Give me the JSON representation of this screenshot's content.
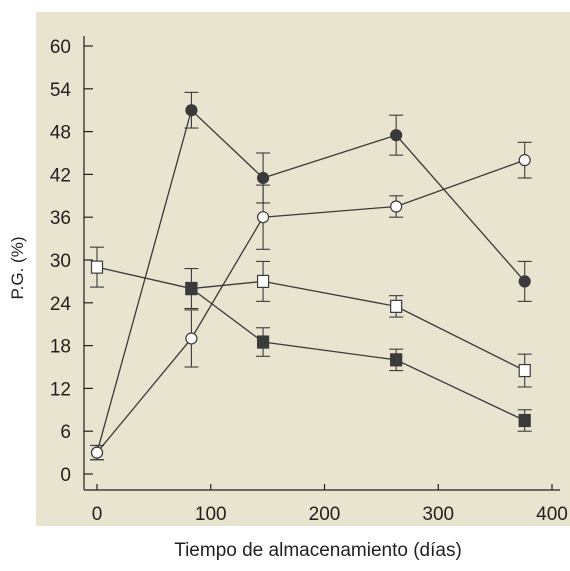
{
  "chart_data": {
    "type": "line",
    "title": "",
    "xlabel": "Tiempo de almacenamiento (días)",
    "ylabel": "P.G. (%)",
    "xlim": [
      0,
      400
    ],
    "ylim": [
      0,
      60
    ],
    "xticks": [
      0,
      100,
      200,
      300,
      400
    ],
    "yticks": [
      0,
      6,
      12,
      18,
      24,
      30,
      36,
      42,
      48,
      54,
      60
    ],
    "grid": false,
    "legend": "none",
    "colors": {
      "plot_background": "#e8e4d0",
      "series_line": "#3a3a3a",
      "filled_marker": "#3a3a3a",
      "open_marker": "#ffffff"
    },
    "series": [
      {
        "marker": "filled-circle",
        "points": [
          {
            "x": 0,
            "y": 3,
            "err": 1
          },
          {
            "x": 83,
            "y": 51,
            "err": 2.5
          },
          {
            "x": 146,
            "y": 41.5,
            "err": 3.5
          },
          {
            "x": 263,
            "y": 47.5,
            "err": 2.8
          },
          {
            "x": 376,
            "y": 27,
            "err": 2.8
          }
        ]
      },
      {
        "marker": "open-circle",
        "points": [
          {
            "x": 0,
            "y": 3,
            "err": 1
          },
          {
            "x": 83,
            "y": 19,
            "err": 4
          },
          {
            "x": 146,
            "y": 36,
            "err": 4.5
          },
          {
            "x": 263,
            "y": 37.5,
            "err": 1.5
          },
          {
            "x": 376,
            "y": 44,
            "err": 2.5
          }
        ]
      },
      {
        "marker": "open-square",
        "points": [
          {
            "x": 0,
            "y": 29,
            "err": 2.8
          },
          {
            "x": 83,
            "y": 26,
            "err": 2.8
          },
          {
            "x": 146,
            "y": 27,
            "err": 2.8
          },
          {
            "x": 263,
            "y": 23.5,
            "err": 1.5
          },
          {
            "x": 376,
            "y": 14.5,
            "err": 2.3
          }
        ]
      },
      {
        "marker": "filled-square",
        "points": [
          {
            "x": 83,
            "y": 26,
            "err": 0
          },
          {
            "x": 146,
            "y": 18.5,
            "err": 2
          },
          {
            "x": 263,
            "y": 16,
            "err": 1.5
          },
          {
            "x": 376,
            "y": 7.5,
            "err": 1.5
          }
        ]
      }
    ]
  }
}
